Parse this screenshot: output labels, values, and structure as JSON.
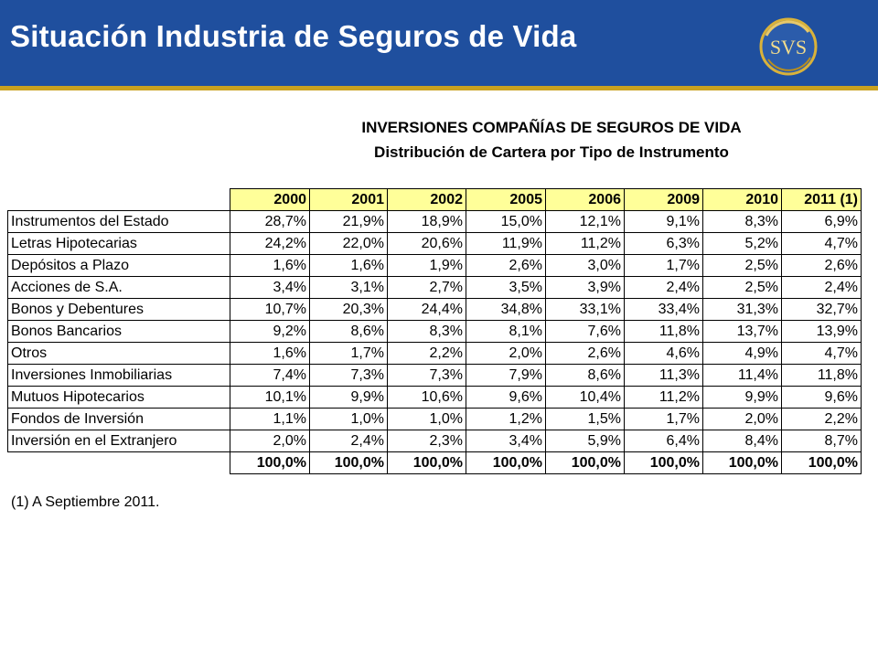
{
  "slide": {
    "title": "Situación Industria de Seguros de Vida",
    "logo_text": "SVS",
    "brand_colors": {
      "header": "#1f4f9e",
      "accent": "#c9a11f",
      "table_header": "#ffff99"
    }
  },
  "table": {
    "heading1": "INVERSIONES COMPAÑÍAS DE SEGUROS DE VIDA",
    "heading2": "Distribución de Cartera por Tipo de Instrumento",
    "columns": [
      "2000",
      "2001",
      "2002",
      "2005",
      "2006",
      "2009",
      "2010",
      "2011 (1)"
    ],
    "rows": [
      {
        "label": "Instrumentos del Estado",
        "values": [
          "28,7%",
          "21,9%",
          "18,9%",
          "15,0%",
          "12,1%",
          "9,1%",
          "8,3%",
          "6,9%"
        ]
      },
      {
        "label": "Letras Hipotecarias",
        "values": [
          "24,2%",
          "22,0%",
          "20,6%",
          "11,9%",
          "11,2%",
          "6,3%",
          "5,2%",
          "4,7%"
        ]
      },
      {
        "label": "Depósitos a Plazo",
        "values": [
          "1,6%",
          "1,6%",
          "1,9%",
          "2,6%",
          "3,0%",
          "1,7%",
          "2,5%",
          "2,6%"
        ]
      },
      {
        "label": "Acciones de S.A.",
        "values": [
          "3,4%",
          "3,1%",
          "2,7%",
          "3,5%",
          "3,9%",
          "2,4%",
          "2,5%",
          "2,4%"
        ]
      },
      {
        "label": "Bonos y Debentures",
        "values": [
          "10,7%",
          "20,3%",
          "24,4%",
          "34,8%",
          "33,1%",
          "33,4%",
          "31,3%",
          "32,7%"
        ]
      },
      {
        "label": "Bonos Bancarios",
        "values": [
          "9,2%",
          "8,6%",
          "8,3%",
          "8,1%",
          "7,6%",
          "11,8%",
          "13,7%",
          "13,9%"
        ]
      },
      {
        "label": "Otros",
        "values": [
          "1,6%",
          "1,7%",
          "2,2%",
          "2,0%",
          "2,6%",
          "4,6%",
          "4,9%",
          "4,7%"
        ]
      },
      {
        "label": "Inversiones Inmobiliarias",
        "values": [
          "7,4%",
          "7,3%",
          "7,3%",
          "7,9%",
          "8,6%",
          "11,3%",
          "11,4%",
          "11,8%"
        ]
      },
      {
        "label": "Mutuos Hipotecarios",
        "values": [
          "10,1%",
          "9,9%",
          "10,6%",
          "9,6%",
          "10,4%",
          "11,2%",
          "9,9%",
          "9,6%"
        ]
      },
      {
        "label": "Fondos de Inversión",
        "values": [
          "1,1%",
          "1,0%",
          "1,0%",
          "1,2%",
          "1,5%",
          "1,7%",
          "2,0%",
          "2,2%"
        ]
      },
      {
        "label": "Inversión en el Extranjero",
        "values": [
          "2,0%",
          "2,4%",
          "2,3%",
          "3,4%",
          "5,9%",
          "6,4%",
          "8,4%",
          "8,7%"
        ]
      }
    ],
    "totals": [
      "100,0%",
      "100,0%",
      "100,0%",
      "100,0%",
      "100,0%",
      "100,0%",
      "100,0%",
      "100,0%"
    ]
  },
  "footnote": "(1) A Septiembre 2011."
}
